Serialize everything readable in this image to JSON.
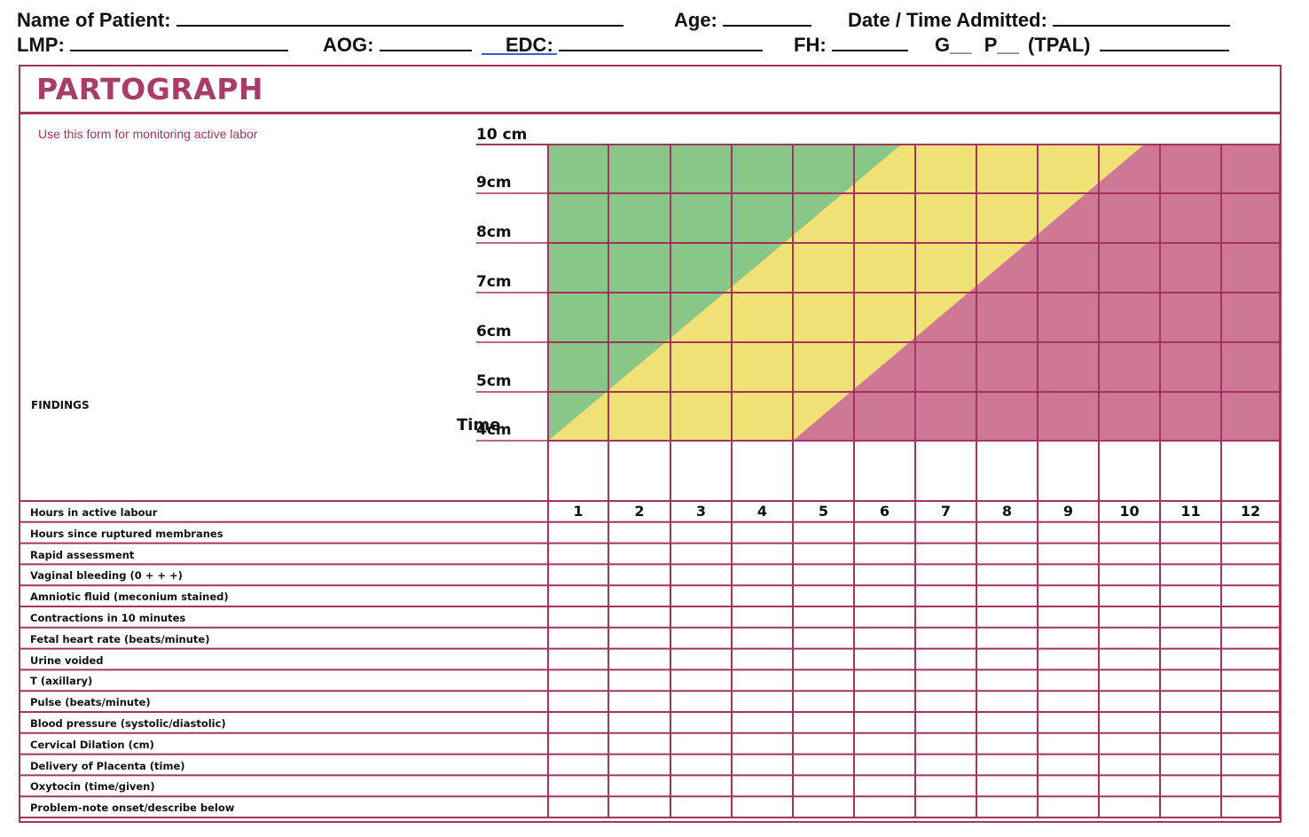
{
  "header": {
    "row1": {
      "name_label": "Name of Patient:",
      "age_label": "Age:",
      "date_label": "Date / Time Admitted:"
    },
    "row2": {
      "lmp_label": "LMP:",
      "aog_label": "AOG:",
      "edc_label": "EDC:",
      "fh_label": "FH:",
      "g_label": "G__",
      "p_label": "P__",
      "tpal_label": "(TPAL)"
    }
  },
  "form": {
    "title": "PARTOGRAPH",
    "subtitle": "Use this form for monitoring active labor",
    "findings_label": "FINDINGS",
    "time_label": "Time"
  },
  "dilation_labels": [
    "10 cm",
    "9cm",
    "8cm",
    "7cm",
    "6cm",
    "5cm",
    "4cm"
  ],
  "hours": [
    "1",
    "2",
    "3",
    "4",
    "5",
    "6",
    "7",
    "8",
    "9",
    "10",
    "11",
    "12"
  ],
  "rows": [
    "Hours in active labour",
    "Hours since ruptured membranes",
    "Rapid assessment",
    "Vaginal bleeding (0 + + +)",
    "Amniotic fluid (meconium stained)",
    "Contractions in 10 minutes",
    "Fetal heart rate (beats/minute)",
    "Urine voided",
    "T (axillary)",
    "Pulse (beats/minute)",
    "Blood pressure (systolic/diastolic)",
    "Cervical Dilation (cm)",
    "Delivery of Placenta (time)",
    "Oxytocin (time/given)",
    "Problem-note onset/describe below"
  ],
  "colors": {
    "border": "#a3345f",
    "green": "#88c788",
    "yellow": "#f0e176",
    "pink": "#cf7896"
  }
}
